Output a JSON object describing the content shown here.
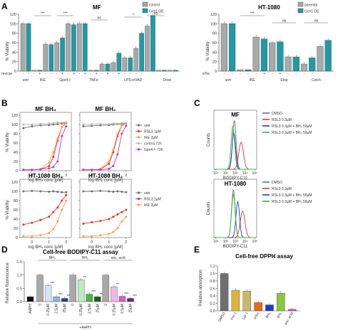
{
  "panels": {
    "A": {
      "label": "A",
      "mf": {
        "title": "MF",
        "legend": [
          "control",
          "Gch1 OE"
        ],
        "ylabel": "% Viability",
        "yticks": [
          "0",
          "20",
          "40",
          "60",
          "80",
          "100",
          "120"
        ],
        "groups": [
          "untr",
          "IKE",
          "Gpx4-/-",
          "TNFα",
          "LPS+zVAD",
          "Doxo"
        ],
        "rescue_label": "rescue",
        "rescue_marks": [
          "-",
          "-",
          "-",
          "+",
          "-",
          "-",
          "-",
          "+",
          "-",
          "+",
          "-",
          "+",
          "-",
          "+",
          "-",
          "+",
          "-",
          "+",
          "-",
          "-",
          "-",
          "-"
        ],
        "signif": [
          "***",
          "***",
          "ns",
          "*",
          "ns"
        ],
        "bar_values": [
          100,
          100,
          2,
          2,
          57,
          56,
          60,
          70,
          100,
          98,
          100,
          100,
          2,
          2,
          15,
          15,
          18,
          38,
          28,
          28,
          48,
          80,
          95,
          117,
          2,
          2,
          2,
          2
        ]
      },
      "ht": {
        "title": "HT-1080",
        "legend": [
          "parental",
          "Gch1 OE"
        ],
        "ylabel": "% Viability",
        "yticks": [
          "0",
          "20",
          "40",
          "60",
          "80",
          "100",
          "120"
        ],
        "groups": [
          "untr",
          "IKE",
          "Etop",
          "Colch"
        ],
        "rescue_label": "αToc",
        "rescue_marks": [
          "-",
          "-",
          "-",
          "-",
          "-",
          "+",
          "-",
          "+",
          "-",
          "-",
          "-",
          "-"
        ],
        "signif": [
          "***",
          "ns",
          "ns"
        ],
        "bar_values": [
          100,
          100,
          3,
          3,
          72,
          68,
          60,
          62,
          30,
          30,
          15,
          28,
          52,
          65
        ]
      }
    },
    "B": {
      "label": "B",
      "plots": [
        {
          "title": "MF BH₄",
          "xlabel": "log BH₄ conc [µM]"
        },
        {
          "title": "MF BH₂",
          "xlabel": "log BH₂ conc [µM]"
        },
        {
          "title": "HT-1080 BH₄",
          "xlabel": "log BH₄ conc [µM]"
        },
        {
          "title": "HT-1080 BH₂",
          "xlabel": "log BH₂ conc [µM]"
        }
      ],
      "ylabel": "% Viability",
      "yticks": [
        "0",
        "20",
        "40",
        "60",
        "80",
        "100",
        "120"
      ],
      "xticks": [
        "0",
        "1",
        "2"
      ],
      "legend_top": [
        "untr",
        "RSL3 1µM",
        "IKE 2µM",
        "control 72h",
        "Gpx4-/- 72h"
      ],
      "legend_bottom": [
        "untr",
        "RSL3 1µM",
        "IKE 2µM"
      ]
    },
    "C": {
      "label": "C",
      "plots": [
        {
          "title": "MF"
        },
        {
          "title": "HT-1080"
        }
      ],
      "ylabel": "Counts",
      "xlabel": "BODIPY-C11",
      "xticks": [
        "10¹",
        "10²",
        "10³",
        "10⁴",
        "10⁵"
      ],
      "legend": [
        "DMSO",
        "RSL3 0.3µM",
        "RSL3 0.3µM + BH₄ 50µM",
        "RSL3 0.3µM + BH₂ 50µM"
      ]
    },
    "D": {
      "label": "D",
      "title": "Cell-free BODIPY-C11 assay",
      "ylabel": "Relative fluorescence",
      "yticks": [
        "0.0",
        "0.5",
        "1.0",
        "1.5"
      ],
      "group_labels": [
        "BH₄",
        "BH₂",
        "asc. acid"
      ],
      "xlabels": [
        "-AAPH",
        "0",
        "0.25µM",
        "2.5µM",
        "25µM",
        "0",
        "0.25µM",
        "2.5µM",
        "25µM",
        "0",
        "0.25µM",
        "2.5µM",
        "25µM"
      ],
      "bottom_label": "+AAPH",
      "stars": [
        "",
        "",
        "***",
        "***",
        "***",
        "",
        "**",
        "***",
        "***",
        "",
        "**",
        "***",
        "***"
      ]
    },
    "E": {
      "label": "E",
      "title": "Cell-free DPPH assay",
      "ylabel": "Relative absorption",
      "yticks": [
        "0.0",
        "0.2",
        "0.4",
        "0.6",
        "0.8",
        "1.0",
        "1.2"
      ],
      "xlabels": [
        "DMSO",
        "Fer-1",
        "Lip-1",
        "αToc",
        "BH₄",
        "BH₂",
        "asc. acid"
      ]
    }
  },
  "colors": {
    "grey": "#a9a9a9",
    "teal": "#1f9ba8",
    "red": "#e8312f",
    "orange": "#f5a04a",
    "purple": "#b23ac6",
    "darkgrey": "#6f6f6f",
    "blue": "#1f3dbf",
    "green": "#3cb44b",
    "gold": "#e2b33a",
    "orangeDark": "#e86a1e",
    "lime": "#8cc63f",
    "magenta": "#d04ad0",
    "black": "#111111"
  },
  "chart_data": [
    {
      "type": "bar",
      "title": "MF",
      "ylabel": "% Viability",
      "ylim": [
        0,
        120
      ],
      "categories": [
        "untr",
        "IKE",
        "IKE + rescue",
        "Gpx4-/-",
        "Gpx4-/- + rescue",
        "TNFα",
        "TNFα + rescue",
        "LPS+zVAD",
        "LPS+zVAD + rescue",
        "Doxo"
      ],
      "series": [
        {
          "name": "control",
          "values": [
            100,
            2,
            57,
            100,
            100,
            2,
            15,
            28,
            95,
            2
          ]
        },
        {
          "name": "Gch1 OE",
          "values": [
            100,
            2,
            56,
            98,
            100,
            2,
            18,
            48,
            117,
            2
          ]
        }
      ]
    },
    {
      "type": "bar",
      "title": "HT-1080",
      "ylabel": "% Viability",
      "ylim": [
        0,
        120
      ],
      "categories": [
        "untr",
        "IKE",
        "IKE + αToc",
        "Etop",
        "Colch"
      ],
      "series": [
        {
          "name": "parental",
          "values": [
            100,
            3,
            72,
            30,
            52
          ]
        },
        {
          "name": "Gch1 OE",
          "values": [
            100,
            3,
            68,
            28,
            65
          ]
        }
      ]
    },
    {
      "type": "line",
      "title": "MF BH₄",
      "xlabel": "log BH₄ conc [µM]",
      "ylabel": "% Viability",
      "ylim": [
        0,
        120
      ],
      "x": [
        -0.5,
        0.0,
        0.5,
        1.0,
        1.25,
        1.5,
        1.75,
        2.0
      ],
      "series": [
        {
          "name": "untr",
          "values": [
            92,
            96,
            98,
            99,
            100,
            101,
            102,
            104
          ]
        },
        {
          "name": "RSL3 1µM",
          "values": [
            2,
            2,
            3,
            10,
            30,
            65,
            95,
            104
          ]
        },
        {
          "name": "IKE 2µM",
          "values": [
            2,
            2,
            3,
            18,
            40,
            70,
            95,
            102
          ]
        },
        {
          "name": "control 72h",
          "values": [
            100,
            100,
            101,
            102,
            103,
            104,
            104,
            105
          ]
        },
        {
          "name": "Gpx4-/- 72h",
          "values": [
            2,
            2,
            3,
            5,
            8,
            20,
            75,
            96
          ]
        }
      ]
    },
    {
      "type": "line",
      "title": "MF BH₂",
      "xlabel": "log BH₂ conc [µM]",
      "ylabel": "% Viability",
      "ylim": [
        0,
        120
      ],
      "x": [
        -0.5,
        0.0,
        0.5,
        1.0,
        1.25,
        1.5,
        1.75,
        2.0
      ],
      "series": [
        {
          "name": "untr",
          "values": [
            96,
            97,
            98,
            99,
            100,
            101,
            101,
            102
          ]
        },
        {
          "name": "RSL3 1µM",
          "values": [
            2,
            2,
            3,
            15,
            40,
            75,
            98,
            103
          ]
        },
        {
          "name": "IKE 2µM",
          "values": [
            2,
            2,
            4,
            20,
            45,
            80,
            98,
            102
          ]
        },
        {
          "name": "control 72h",
          "values": [
            100,
            100,
            101,
            101,
            102,
            102,
            103,
            103
          ]
        },
        {
          "name": "Gpx4-/- 72h",
          "values": [
            2,
            2,
            2,
            4,
            10,
            35,
            80,
            97
          ]
        }
      ]
    },
    {
      "type": "line",
      "title": "HT-1080 BH₄",
      "xlabel": "log BH₄ conc [µM]",
      "ylabel": "% Viability",
      "ylim": [
        0,
        120
      ],
      "x": [
        -0.5,
        0.0,
        0.5,
        1.0,
        1.25,
        1.5,
        1.75,
        2.0
      ],
      "series": [
        {
          "name": "untr",
          "values": [
            100,
            101,
            100,
            99,
            100,
            99,
            98,
            98
          ]
        },
        {
          "name": "RSL3 1µM",
          "values": [
            28,
            32,
            38,
            45,
            55,
            65,
            80,
            92
          ]
        },
        {
          "name": "IKE 2µM",
          "values": [
            3,
            3,
            5,
            10,
            18,
            35,
            60,
            80
          ]
        }
      ]
    },
    {
      "type": "line",
      "title": "HT-1080 BH₂",
      "xlabel": "log BH₂ conc [µM]",
      "ylabel": "% Viability",
      "ylim": [
        0,
        120
      ],
      "x": [
        -0.5,
        0.0,
        0.5,
        1.0,
        1.25,
        1.5,
        1.75,
        2.0
      ],
      "series": [
        {
          "name": "untr",
          "values": [
            100,
            100,
            101,
            100,
            99,
            100,
            99,
            98
          ]
        },
        {
          "name": "RSL3 1µM",
          "values": [
            30,
            33,
            36,
            40,
            45,
            50,
            55,
            60
          ]
        },
        {
          "name": "IKE 2µM",
          "values": [
            3,
            3,
            5,
            8,
            12,
            20,
            35,
            45
          ]
        }
      ]
    },
    {
      "type": "line",
      "title": "MF",
      "xlabel": "BODIPY-C11",
      "ylabel": "Counts",
      "series": [
        {
          "name": "DMSO",
          "peak_log10": 2.9
        },
        {
          "name": "RSL3 0.3µM",
          "peak_log10": 3.6
        },
        {
          "name": "RSL3 0.3µM + BH₄ 50µM",
          "peak_log10": 2.85
        },
        {
          "name": "RSL3 0.3µM + BH₂ 50µM",
          "peak_log10": 2.75
        }
      ]
    },
    {
      "type": "line",
      "title": "HT-1080",
      "xlabel": "BODIPY-C11",
      "ylabel": "Counts",
      "series": [
        {
          "name": "DMSO",
          "peak_log10": 2.8
        },
        {
          "name": "RSL3 0.3µM",
          "peak_log10": 3.75
        },
        {
          "name": "RSL3 0.3µM + BH₄ 50µM",
          "peak_log10": 3.25
        },
        {
          "name": "RSL3 0.3µM + BH₂ 50µM",
          "peak_log10": 2.8
        }
      ]
    },
    {
      "type": "bar",
      "title": "Cell-free BODIPY-C11 assay",
      "ylabel": "Relative fluorescence",
      "ylim": [
        0,
        1.5
      ],
      "categories": [
        "-AAPH",
        "BH₄ 0",
        "BH₄ 0.25µM",
        "BH₄ 2.5µM",
        "BH₄ 25µM",
        "BH₂ 0",
        "BH₂ 0.25µM",
        "BH₂ 2.5µM",
        "BH₂ 25µM",
        "asc. acid 0",
        "asc. acid 0.25µM",
        "asc. acid 2.5µM",
        "asc. acid 25µM"
      ],
      "values": [
        0.18,
        1.0,
        0.6,
        0.18,
        0.12,
        1.0,
        0.82,
        0.28,
        0.18,
        1.0,
        0.56,
        0.2,
        0.12
      ]
    },
    {
      "type": "bar",
      "title": "Cell-free DPPH assay",
      "ylabel": "Relative absorption",
      "ylim": [
        0,
        1.2
      ],
      "categories": [
        "DMSO",
        "Fer-1",
        "Lip-1",
        "αToc",
        "BH₄",
        "BH₂",
        "asc. acid"
      ],
      "values": [
        1.0,
        0.55,
        0.53,
        0.22,
        0.16,
        0.47,
        0.04
      ]
    }
  ]
}
